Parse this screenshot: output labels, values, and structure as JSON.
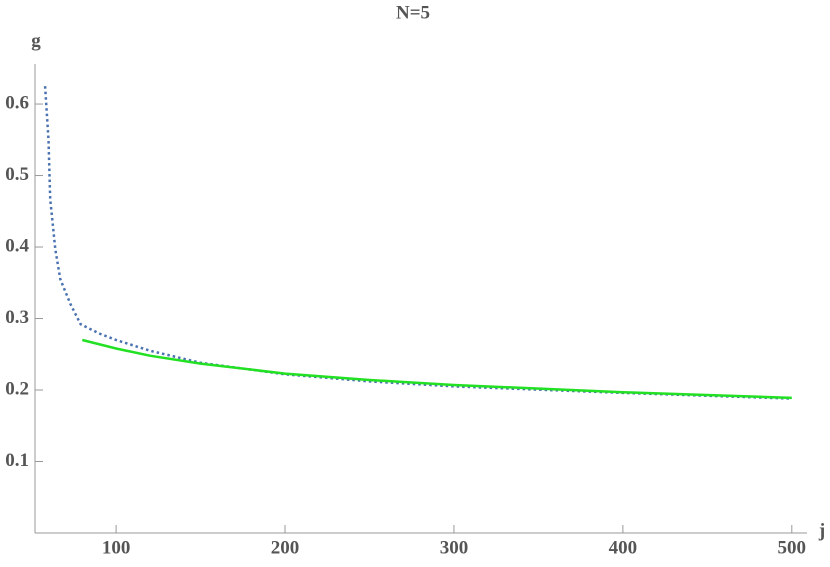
{
  "chart_data": {
    "type": "line",
    "title": "N=5",
    "xlabel": "j",
    "ylabel": "g",
    "xlim": [
      52,
      509
    ],
    "ylim": [
      0,
      0.656
    ],
    "xticks": [
      100,
      200,
      300,
      400,
      500
    ],
    "yticks": [
      0.1,
      0.2,
      0.3,
      0.4,
      0.5,
      0.6
    ],
    "series": [
      {
        "color": "#4a72b0",
        "dash": true,
        "x": [
          58,
          60,
          61,
          64,
          67,
          73,
          79,
          90,
          100,
          120,
          150,
          200,
          250,
          300,
          400,
          500
        ],
        "values": [
          0.625,
          0.55,
          0.467,
          0.397,
          0.355,
          0.32,
          0.292,
          0.279,
          0.27,
          0.255,
          0.238,
          0.222,
          0.212,
          0.205,
          0.196,
          0.188
        ]
      },
      {
        "color": "#22e022",
        "dash": false,
        "x": [
          80,
          100,
          120,
          150,
          200,
          250,
          300,
          400,
          500
        ],
        "values": [
          0.27,
          0.258,
          0.248,
          0.237,
          0.223,
          0.214,
          0.207,
          0.197,
          0.189
        ]
      }
    ]
  }
}
